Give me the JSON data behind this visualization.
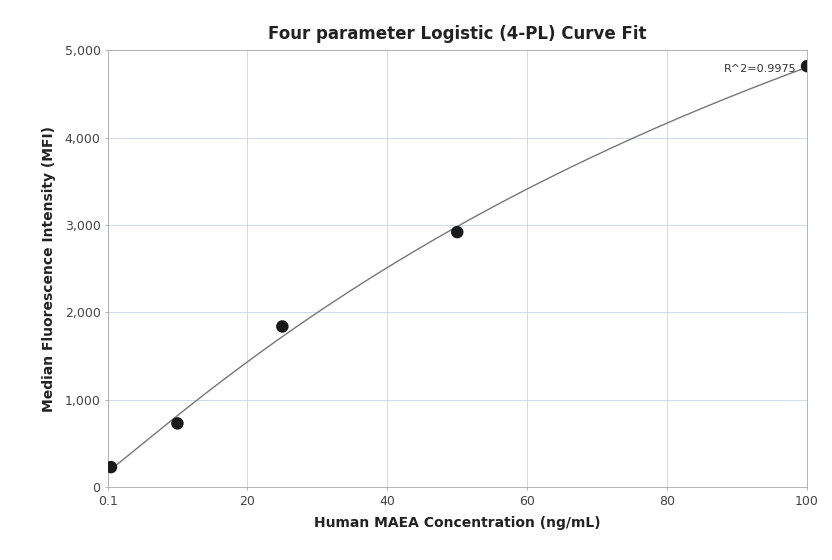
{
  "title": "Four parameter Logistic (4-PL) Curve Fit",
  "xlabel": "Human MAEA Concentration (ng/mL)",
  "ylabel": "Median Fluorescence Intensity (MFI)",
  "x_data": [
    0.5,
    10,
    25,
    50,
    100
  ],
  "y_data": [
    230,
    730,
    1840,
    2920,
    4820
  ],
  "xlim": [
    0.1,
    100
  ],
  "ylim": [
    0,
    5000
  ],
  "xticks": [
    0.1,
    20,
    40,
    60,
    80,
    100
  ],
  "xtick_labels": [
    "0.1",
    "20",
    "40",
    "60",
    "80",
    "100"
  ],
  "yticks": [
    0,
    1000,
    2000,
    3000,
    4000,
    5000
  ],
  "ytick_labels": [
    "0",
    "1,000",
    "2,000",
    "3,000",
    "4,000",
    "5,000"
  ],
  "r_squared_text": "R^2=0.9975",
  "marker_color": "#1a1a1a",
  "line_color": "#777777",
  "grid_color": "#ccdcec",
  "background_color": "#ffffff",
  "title_fontsize": 12,
  "axis_label_fontsize": 10,
  "tick_fontsize": 9,
  "annotation_fontsize": 8,
  "marker_size": 9,
  "line_width": 1.0,
  "4pl_A": 10.0,
  "4pl_B": 0.55,
  "4pl_C": 8.0,
  "4pl_D": 5800.0
}
